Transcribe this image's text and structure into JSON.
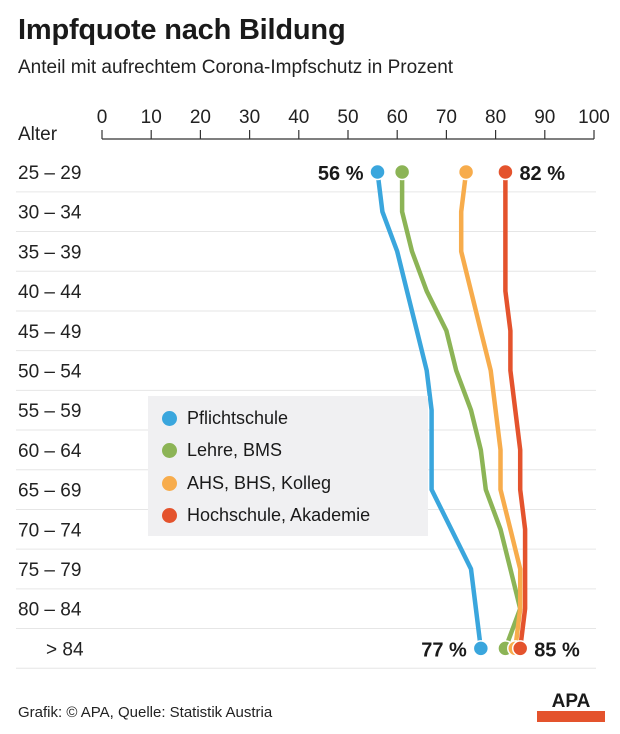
{
  "header": {
    "title": "Impfquote nach Bildung",
    "subtitle": "Anteil mit aufrechtem Corona-Impfschutz in Prozent"
  },
  "footer": {
    "source": "Grafik: © APA, Quelle: Statistik Austria",
    "logo_text": "APA"
  },
  "colors": {
    "Pflichtschule": "#3aa6dd",
    "Lehre, BMS": "#8cb456",
    "AHS, BHS, Kolleg": "#f7ac4c",
    "Hochschule, Akademie": "#e4532d",
    "logo": "#e4532d"
  },
  "chart_data": {
    "type": "line",
    "orientation": "horizontal",
    "title": "Impfquote nach Bildung",
    "subtitle": "Anteil mit aufrechtem Corona-Impfschutz in Prozent",
    "y_label": "Alter",
    "categories": [
      "25 – 29",
      "30 – 34",
      "35 – 39",
      "40 – 44",
      "45 – 49",
      "50 – 54",
      "55 – 59",
      "60 – 64",
      "65 – 69",
      "70 – 74",
      "75 – 79",
      "80 – 84",
      "> 84"
    ],
    "x_ticks": [
      0,
      10,
      20,
      30,
      40,
      50,
      60,
      70,
      80,
      90,
      100
    ],
    "xlim": [
      0,
      100
    ],
    "grid": true,
    "series": [
      {
        "name": "Pflichtschule",
        "values": [
          56,
          57,
          60,
          62,
          64,
          66,
          67,
          67,
          67,
          71,
          75,
          76,
          77
        ]
      },
      {
        "name": "Lehre, BMS",
        "values": [
          61,
          61,
          63,
          66,
          70,
          72,
          75,
          77,
          78,
          81,
          83,
          85,
          82
        ]
      },
      {
        "name": "AHS, BHS, Kolleg",
        "values": [
          74,
          73,
          73,
          75,
          77,
          79,
          80,
          81,
          81,
          83,
          85,
          85,
          84
        ]
      },
      {
        "name": "Hochschule, Akademie",
        "values": [
          82,
          82,
          82,
          82,
          83,
          83,
          84,
          85,
          85,
          86,
          86,
          86,
          85
        ]
      }
    ],
    "annotations": [
      {
        "text": "56 %"
      },
      {
        "text": "82 %"
      },
      {
        "text": "77 %"
      },
      {
        "text": "85 %"
      }
    ],
    "legend_position": "center-left"
  }
}
